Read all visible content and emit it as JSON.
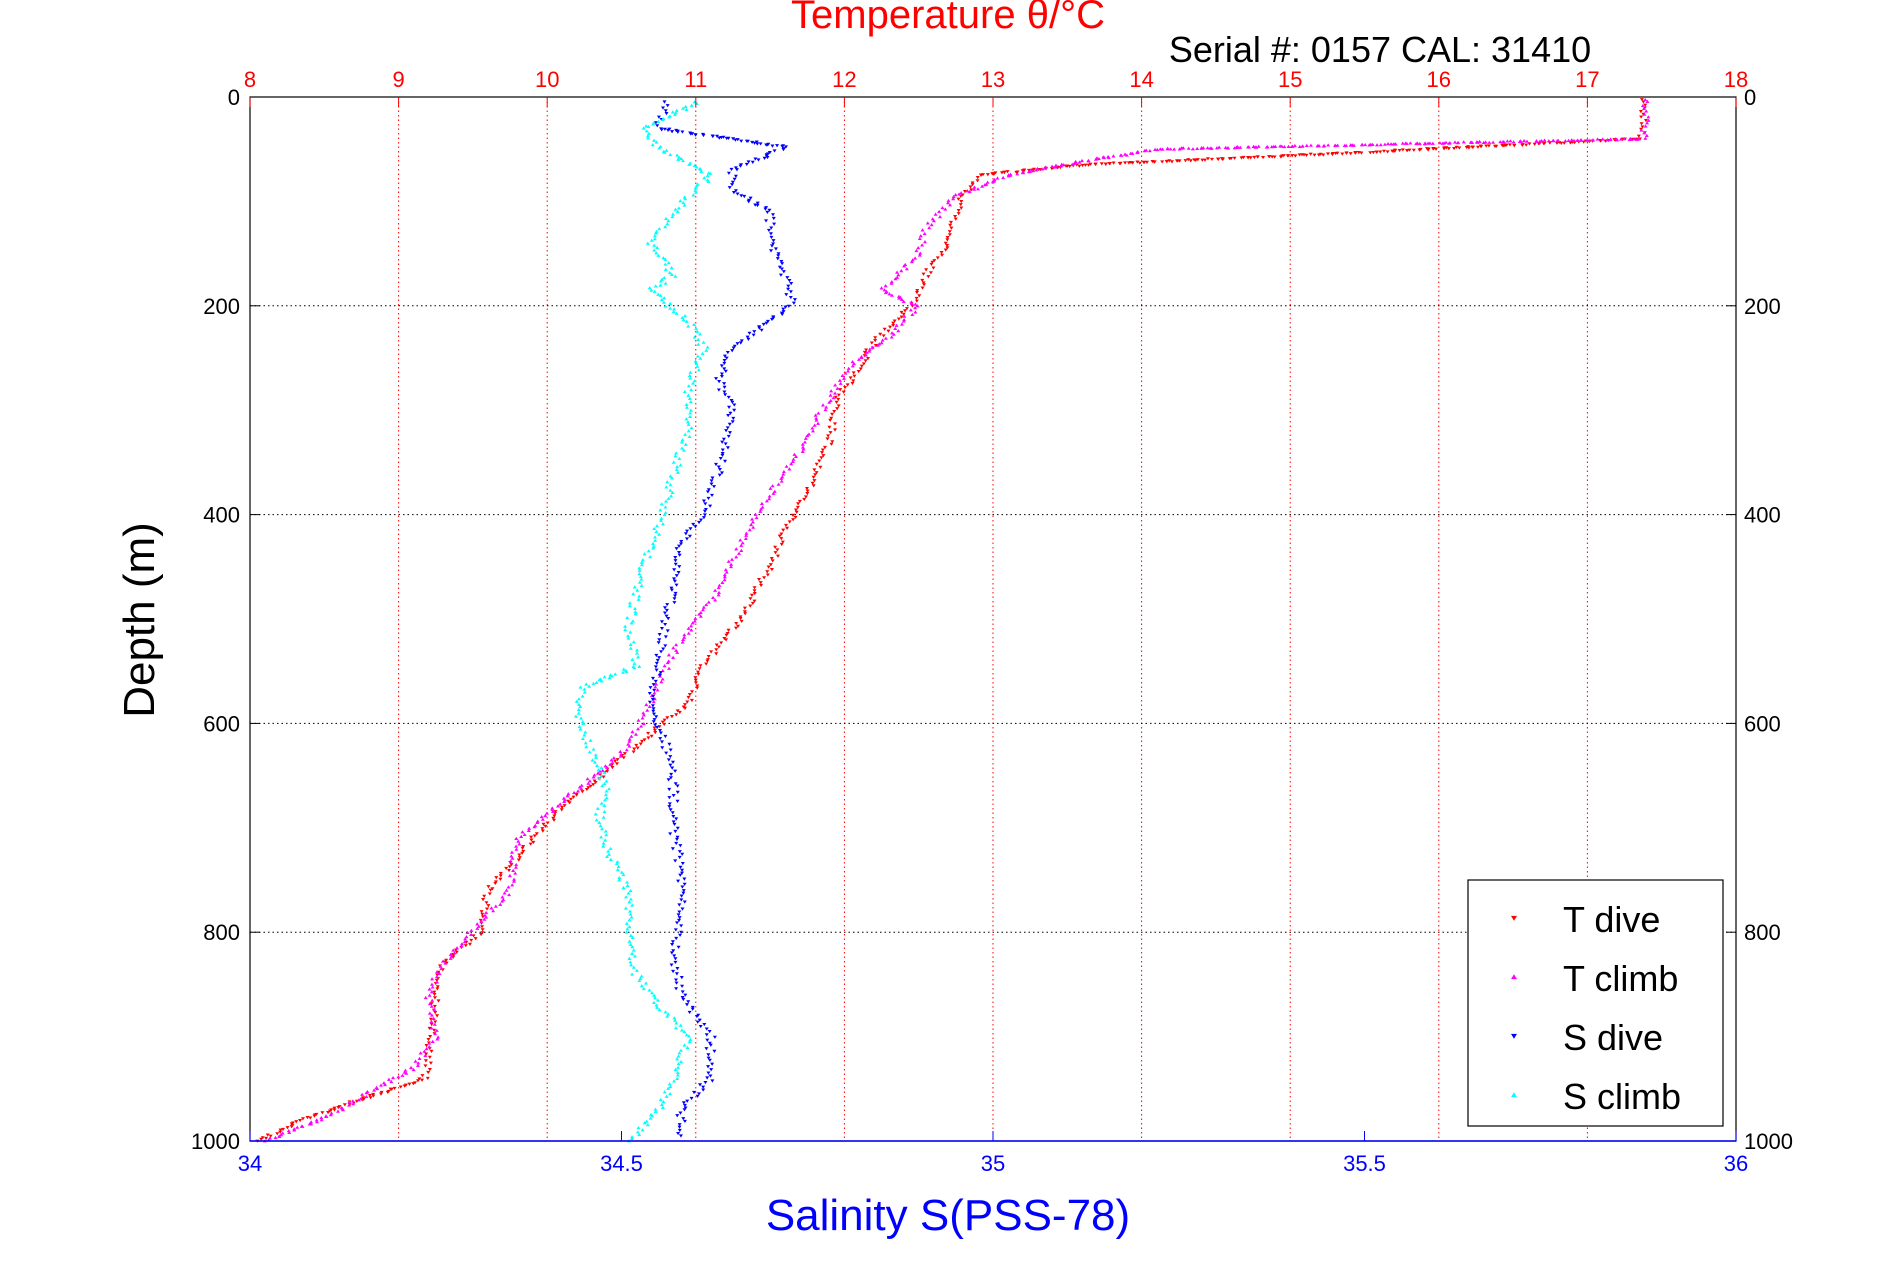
{
  "chart_data": {
    "type": "scatter",
    "title": "Temperature θ/°C",
    "subtitle": "Serial #: 0157  CAL: 31410",
    "xlabel_bottom": "Salinity S(PSS-78)",
    "ylabel": "Depth (m)",
    "x_bottom": {
      "lim": [
        34,
        36
      ],
      "ticks": [
        34,
        34.5,
        35,
        35.5,
        36
      ],
      "tick_labels": [
        "34",
        "34.5",
        "35",
        "35.5",
        "36"
      ]
    },
    "x_top": {
      "lim": [
        8,
        18
      ],
      "ticks": [
        8,
        9,
        10,
        11,
        12,
        13,
        14,
        15,
        16,
        17,
        18
      ],
      "tick_labels": [
        "8",
        "9",
        "10",
        "11",
        "12",
        "13",
        "14",
        "15",
        "16",
        "17",
        "18"
      ]
    },
    "y": {
      "lim": [
        0,
        1000
      ],
      "reversed": true,
      "ticks": [
        0,
        200,
        400,
        600,
        800,
        1000
      ],
      "tick_labels": [
        "0",
        "200",
        "400",
        "600",
        "800",
        "1000"
      ]
    },
    "grid": true,
    "legend_position": "bottom-right",
    "series": [
      {
        "name": "T dive",
        "axis": "temperature",
        "color": "#ff0000",
        "marker": "triangle-down",
        "points": [
          [
            17.38,
            2
          ],
          [
            17.37,
            40
          ],
          [
            15.2,
            55
          ],
          [
            13.6,
            65
          ],
          [
            12.9,
            75
          ],
          [
            12.78,
            100
          ],
          [
            12.7,
            140
          ],
          [
            12.55,
            170
          ],
          [
            12.45,
            200
          ],
          [
            12.2,
            235
          ],
          [
            12.1,
            260
          ],
          [
            11.95,
            290
          ],
          [
            11.9,
            330
          ],
          [
            11.78,
            370
          ],
          [
            11.62,
            410
          ],
          [
            11.5,
            450
          ],
          [
            11.3,
            500
          ],
          [
            11.05,
            545
          ],
          [
            10.95,
            580
          ],
          [
            10.7,
            610
          ],
          [
            10.45,
            640
          ],
          [
            10.1,
            680
          ],
          [
            9.85,
            720
          ],
          [
            9.6,
            760
          ],
          [
            9.55,
            800
          ],
          [
            9.3,
            830
          ],
          [
            9.25,
            860
          ],
          [
            9.22,
            900
          ],
          [
            9.18,
            940
          ],
          [
            8.75,
            960
          ],
          [
            8.35,
            980
          ],
          [
            8.05,
            1000
          ]
        ]
      },
      {
        "name": "T climb",
        "axis": "temperature",
        "color": "#ff00ff",
        "marker": "triangle-up",
        "points": [
          [
            17.4,
            2
          ],
          [
            17.38,
            40
          ],
          [
            14.1,
            50
          ],
          [
            13.6,
            62
          ],
          [
            13.1,
            75
          ],
          [
            12.75,
            95
          ],
          [
            12.55,
            125
          ],
          [
            12.5,
            150
          ],
          [
            12.25,
            185
          ],
          [
            12.5,
            200
          ],
          [
            12.3,
            230
          ],
          [
            12.05,
            255
          ],
          [
            11.85,
            300
          ],
          [
            11.7,
            340
          ],
          [
            11.5,
            380
          ],
          [
            11.3,
            430
          ],
          [
            11.12,
            480
          ],
          [
            10.9,
            520
          ],
          [
            10.75,
            560
          ],
          [
            10.65,
            595
          ],
          [
            10.5,
            630
          ],
          [
            10.15,
            670
          ],
          [
            9.8,
            710
          ],
          [
            9.75,
            760
          ],
          [
            9.55,
            790
          ],
          [
            9.3,
            830
          ],
          [
            9.2,
            860
          ],
          [
            9.25,
            900
          ],
          [
            9.1,
            930
          ],
          [
            8.85,
            950
          ],
          [
            8.55,
            975
          ],
          [
            8.1,
            1000
          ]
        ]
      },
      {
        "name": "S dive",
        "axis": "salinity",
        "color": "#0000ff",
        "marker": "triangle-down",
        "points": [
          [
            34.56,
            5
          ],
          [
            34.55,
            30
          ],
          [
            34.72,
            48
          ],
          [
            34.65,
            70
          ],
          [
            34.65,
            90
          ],
          [
            34.7,
            110
          ],
          [
            34.7,
            140
          ],
          [
            34.72,
            170
          ],
          [
            34.73,
            200
          ],
          [
            34.65,
            240
          ],
          [
            34.63,
            270
          ],
          [
            34.65,
            300
          ],
          [
            34.64,
            330
          ],
          [
            34.63,
            360
          ],
          [
            34.61,
            400
          ],
          [
            34.58,
            430
          ],
          [
            34.57,
            470
          ],
          [
            34.56,
            500
          ],
          [
            34.55,
            540
          ],
          [
            34.54,
            580
          ],
          [
            34.56,
            620
          ],
          [
            34.57,
            660
          ],
          [
            34.57,
            700
          ],
          [
            34.58,
            740
          ],
          [
            34.58,
            780
          ],
          [
            34.57,
            820
          ],
          [
            34.58,
            860
          ],
          [
            34.62,
            900
          ],
          [
            34.62,
            940
          ],
          [
            34.58,
            970
          ],
          [
            34.58,
            995
          ]
        ]
      },
      {
        "name": "S climb",
        "axis": "salinity",
        "color": "#00ffff",
        "marker": "triangle-up",
        "points": [
          [
            34.6,
            5
          ],
          [
            34.53,
            30
          ],
          [
            34.55,
            48
          ],
          [
            34.62,
            75
          ],
          [
            34.57,
            110
          ],
          [
            34.54,
            140
          ],
          [
            34.57,
            170
          ],
          [
            34.54,
            185
          ],
          [
            34.59,
            215
          ],
          [
            34.61,
            240
          ],
          [
            34.59,
            280
          ],
          [
            34.59,
            320
          ],
          [
            34.57,
            360
          ],
          [
            34.56,
            390
          ],
          [
            34.54,
            430
          ],
          [
            34.52,
            470
          ],
          [
            34.51,
            510
          ],
          [
            34.52,
            545
          ],
          [
            34.45,
            565
          ],
          [
            34.44,
            590
          ],
          [
            34.46,
            630
          ],
          [
            34.48,
            660
          ],
          [
            34.47,
            690
          ],
          [
            34.48,
            720
          ],
          [
            34.51,
            760
          ],
          [
            34.51,
            800
          ],
          [
            34.52,
            840
          ],
          [
            34.55,
            870
          ],
          [
            34.59,
            900
          ],
          [
            34.57,
            940
          ],
          [
            34.55,
            970
          ],
          [
            34.51,
            1000
          ]
        ]
      }
    ]
  }
}
